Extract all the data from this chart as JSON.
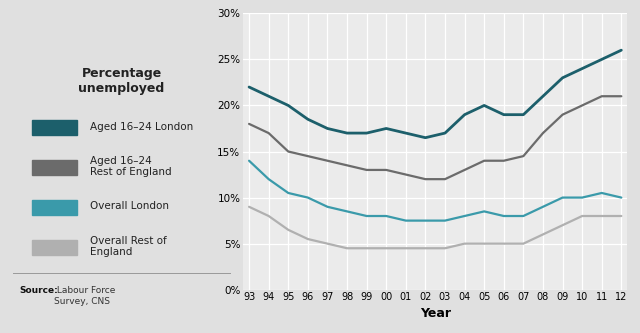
{
  "years": [
    93,
    94,
    95,
    96,
    97,
    98,
    99,
    0,
    1,
    2,
    3,
    4,
    5,
    6,
    7,
    8,
    9,
    10,
    11,
    12
  ],
  "year_labels": [
    "93",
    "94",
    "95",
    "96",
    "97",
    "98",
    "99",
    "00",
    "01",
    "02",
    "03",
    "04",
    "05",
    "06",
    "07",
    "08",
    "09",
    "10",
    "11",
    "12"
  ],
  "aged_16_24_london": [
    22,
    21,
    20,
    18.5,
    17.5,
    17,
    17,
    17.5,
    17,
    16.5,
    17,
    19,
    20,
    19,
    19,
    21,
    23,
    24,
    25,
    26
  ],
  "aged_16_24_rest": [
    18,
    17,
    15,
    14.5,
    14,
    13.5,
    13,
    13,
    12.5,
    12,
    12,
    13,
    14,
    14,
    14.5,
    17,
    19,
    20,
    21,
    21
  ],
  "overall_london": [
    14,
    12,
    10.5,
    10,
    9,
    8.5,
    8,
    8,
    7.5,
    7.5,
    7.5,
    8,
    8.5,
    8,
    8,
    9,
    10,
    10,
    10.5,
    10
  ],
  "overall_rest": [
    9,
    8,
    6.5,
    5.5,
    5,
    4.5,
    4.5,
    4.5,
    4.5,
    4.5,
    4.5,
    5,
    5,
    5,
    5,
    6,
    7,
    8,
    8,
    8
  ],
  "color_london_1624": "#1c5f6b",
  "color_rest_1624": "#6b6b6b",
  "color_overall_london": "#3a9aaa",
  "color_overall_rest": "#b0b0b0",
  "ylim": [
    0,
    30
  ],
  "ytick_labels": [
    "0%",
    "5%",
    "10%",
    "15%",
    "20%",
    "25%",
    "30%"
  ],
  "ytick_values": [
    0,
    5,
    10,
    15,
    20,
    25,
    30
  ],
  "xlabel": "Year",
  "ylabel_line1": "Percentage",
  "ylabel_line2": "unemployed",
  "legend_labels": [
    "Aged 16–24 London",
    "Aged 16–24\nRest of England",
    "Overall London",
    "Overall Rest of\nEngland"
  ],
  "source_text": "Source: Labour Force\nSurvey, CNS",
  "bg_color": "#e0e0e0",
  "plot_bg_color": "#ebebeb"
}
